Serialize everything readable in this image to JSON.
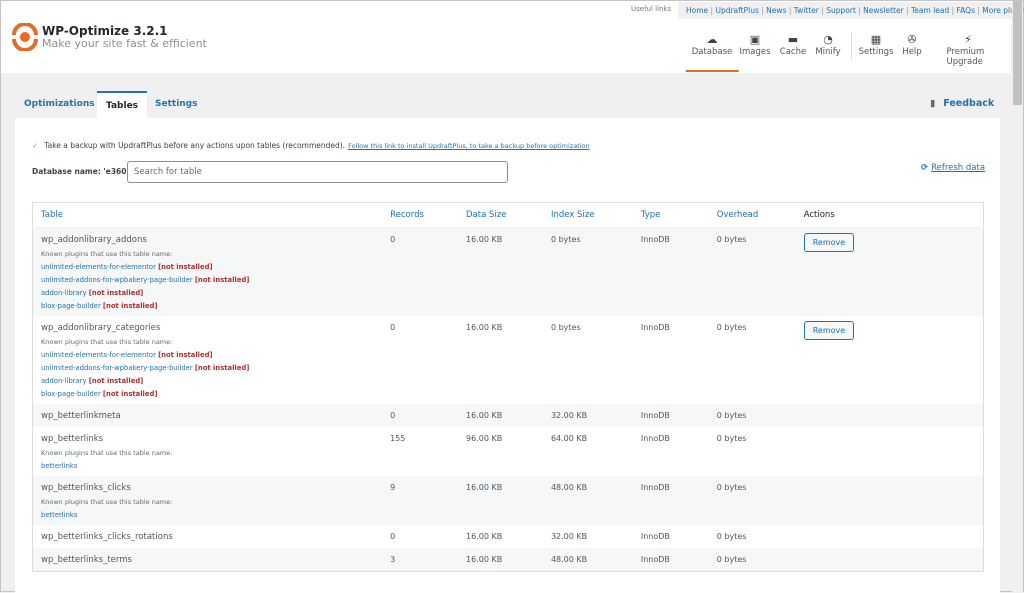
{
  "app": {
    "title": "WP-Optimize 3.2.1",
    "subtitle": "Make your site fast & efficient",
    "accent": "#e86a27"
  },
  "useful_links": {
    "label": "Useful links",
    "links": [
      "Home",
      "UpdraftPlus",
      "News",
      "Twitter",
      "Support",
      "Newsletter",
      "Team lead",
      "FAQs",
      "More plugins"
    ]
  },
  "nav": [
    {
      "label": "Database",
      "icon": "cloud-icon",
      "active": true
    },
    {
      "label": "Images",
      "icon": "images-icon"
    },
    {
      "label": "Cache",
      "icon": "archive-icon"
    },
    {
      "label": "Minify",
      "icon": "dashboard-icon"
    },
    {
      "label": "Settings",
      "icon": "settings-icon"
    },
    {
      "label": "Help",
      "icon": "lifebuoy-icon"
    },
    {
      "label": "Premium Upgrade",
      "icon": "plug-icon"
    }
  ],
  "tabs": [
    {
      "label": "Optimizations"
    },
    {
      "label": "Tables",
      "active": true
    },
    {
      "label": "Settings"
    }
  ],
  "feedback": "Feedback",
  "backup": {
    "text": "Take a backup with UpdraftPlus before any actions upon tables (recommended).",
    "link": "Follow this link to install UpdraftPlus, to take a backup before optimization",
    "checked": true
  },
  "db": {
    "label": "Database name: 'e360'",
    "search_placeholder": "Search for table",
    "refresh": "Refresh data"
  },
  "table": {
    "headers": [
      "Table",
      "Records",
      "Data Size",
      "Index Size",
      "Type",
      "Overhead",
      "Actions"
    ],
    "known_label": "Known plugins that use this table name:",
    "not_installed": "[not installed]",
    "remove": "Remove",
    "rows": [
      {
        "name": "wp_addonlibrary_addons",
        "records": "0",
        "data": "16.00 KB",
        "index": "0 bytes",
        "type": "InnoDB",
        "overhead": "0 bytes",
        "plugins": [
          {
            "name": "unlimited-elements-for-elementor",
            "ni": true
          },
          {
            "name": "unlimited-addons-for-wpbakery-page-builder",
            "ni": true
          },
          {
            "name": "addon-library",
            "ni": true
          },
          {
            "name": "blox-page-builder",
            "ni": true
          }
        ],
        "remove": true
      },
      {
        "name": "wp_addonlibrary_categories",
        "records": "0",
        "data": "16.00 KB",
        "index": "0 bytes",
        "type": "InnoDB",
        "overhead": "0 bytes",
        "plugins": [
          {
            "name": "unlimited-elements-for-elementor",
            "ni": true
          },
          {
            "name": "unlimited-addons-for-wpbakery-page-builder",
            "ni": true
          },
          {
            "name": "addon-library",
            "ni": true
          },
          {
            "name": "blox-page-builder",
            "ni": true
          }
        ],
        "remove": true
      },
      {
        "name": "wp_betterlinkmeta",
        "records": "0",
        "data": "16.00 KB",
        "index": "32.00 KB",
        "type": "InnoDB",
        "overhead": "0 bytes",
        "plugins": []
      },
      {
        "name": "wp_betterlinks",
        "records": "155",
        "data": "96.00 KB",
        "index": "64.00 KB",
        "type": "InnoDB",
        "overhead": "0 bytes",
        "plugins": [
          {
            "name": "betterlinks"
          }
        ]
      },
      {
        "name": "wp_betterlinks_clicks",
        "records": "9",
        "data": "16.00 KB",
        "index": "48.00 KB",
        "type": "InnoDB",
        "overhead": "0 bytes",
        "plugins": [
          {
            "name": "betterlinks"
          }
        ]
      },
      {
        "name": "wp_betterlinks_clicks_rotations",
        "records": "0",
        "data": "16.00 KB",
        "index": "32.00 KB",
        "type": "InnoDB",
        "overhead": "0 bytes",
        "plugins": []
      },
      {
        "name": "wp_betterlinks_terms",
        "records": "3",
        "data": "16.00 KB",
        "index": "48.00 KB",
        "type": "InnoDB",
        "overhead": "0 bytes",
        "plugins": []
      }
    ]
  }
}
